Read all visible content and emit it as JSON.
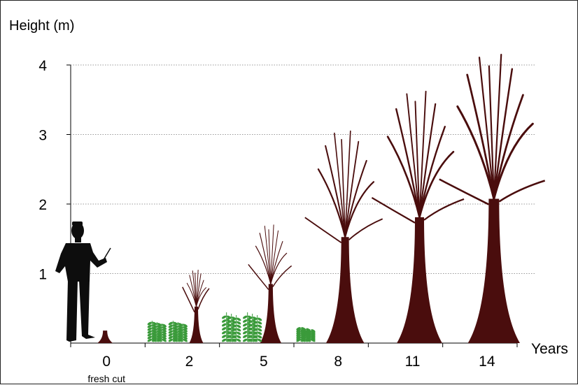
{
  "chart_data": {
    "type": "other",
    "ylabel": "Height (m)",
    "xlabel": "Years",
    "yticks": [
      "1",
      "2",
      "3",
      "4"
    ],
    "ylim": [
      0,
      4
    ],
    "grid": "dotted horizontal",
    "stages": [
      {
        "year": "0",
        "note": "fresh cut",
        "tree_height_m": 0.18,
        "ferns": 0
      },
      {
        "year": "2",
        "tree_height_m": 1.05,
        "ferns": 2
      },
      {
        "year": "5",
        "tree_height_m": 1.7,
        "ferns": 2
      },
      {
        "year": "8",
        "tree_height_m": 3.05,
        "ferns": 1
      },
      {
        "year": "11",
        "tree_height_m": 3.62,
        "ferns": 0
      },
      {
        "year": "14",
        "tree_height_m": 4.15,
        "ferns": 0
      }
    ],
    "colors": {
      "tree": "#4a0d0d",
      "fern": "#3a9a3a",
      "person": "#0d0d0d",
      "grid": "#999999"
    }
  }
}
